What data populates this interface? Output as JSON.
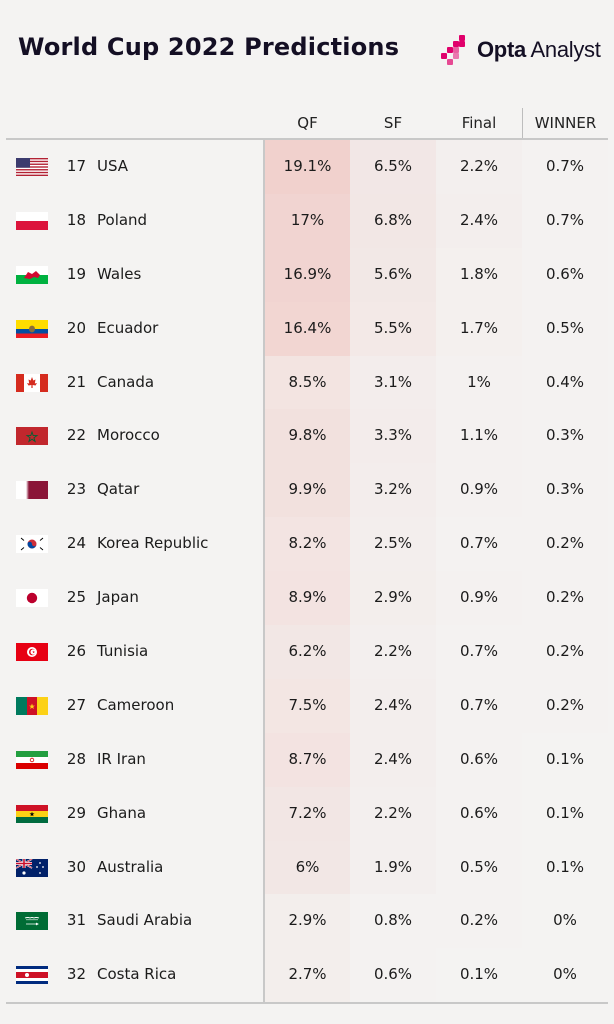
{
  "title": "World Cup 2022 Predictions",
  "brand": {
    "strong": "Opta",
    "light": " Analyst",
    "color": "#e0006b"
  },
  "columns": {
    "qf": "QF",
    "sf": "SF",
    "final": "Final",
    "winner": "WINNER"
  },
  "colors": {
    "heat": "#e8594a",
    "background": "#f4f3f2"
  },
  "chart_data": {
    "type": "table",
    "title": "World Cup 2022 Predictions",
    "columns": [
      "QF",
      "SF",
      "Final",
      "WINNER"
    ],
    "rows": [
      {
        "rank": "17",
        "team": "USA",
        "flag": "usa",
        "qf": "19.1%",
        "sf": "6.5%",
        "final": "2.2%",
        "winner": "0.7%"
      },
      {
        "rank": "18",
        "team": "Poland",
        "flag": "poland",
        "qf": "17%",
        "sf": "6.8%",
        "final": "2.4%",
        "winner": "0.7%"
      },
      {
        "rank": "19",
        "team": "Wales",
        "flag": "wales",
        "qf": "16.9%",
        "sf": "5.6%",
        "final": "1.8%",
        "winner": "0.6%"
      },
      {
        "rank": "20",
        "team": "Ecuador",
        "flag": "ecuador",
        "qf": "16.4%",
        "sf": "5.5%",
        "final": "1.7%",
        "winner": "0.5%"
      },
      {
        "rank": "21",
        "team": "Canada",
        "flag": "canada",
        "qf": "8.5%",
        "sf": "3.1%",
        "final": "1%",
        "winner": "0.4%"
      },
      {
        "rank": "22",
        "team": "Morocco",
        "flag": "morocco",
        "qf": "9.8%",
        "sf": "3.3%",
        "final": "1.1%",
        "winner": "0.3%"
      },
      {
        "rank": "23",
        "team": "Qatar",
        "flag": "qatar",
        "qf": "9.9%",
        "sf": "3.2%",
        "final": "0.9%",
        "winner": "0.3%"
      },
      {
        "rank": "24",
        "team": "Korea Republic",
        "flag": "korea",
        "qf": "8.2%",
        "sf": "2.5%",
        "final": "0.7%",
        "winner": "0.2%"
      },
      {
        "rank": "25",
        "team": "Japan",
        "flag": "japan",
        "qf": "8.9%",
        "sf": "2.9%",
        "final": "0.9%",
        "winner": "0.2%"
      },
      {
        "rank": "26",
        "team": "Tunisia",
        "flag": "tunisia",
        "qf": "6.2%",
        "sf": "2.2%",
        "final": "0.7%",
        "winner": "0.2%"
      },
      {
        "rank": "27",
        "team": "Cameroon",
        "flag": "cameroon",
        "qf": "7.5%",
        "sf": "2.4%",
        "final": "0.7%",
        "winner": "0.2%"
      },
      {
        "rank": "28",
        "team": "IR Iran",
        "flag": "iran",
        "qf": "8.7%",
        "sf": "2.4%",
        "final": "0.6%",
        "winner": "0.1%"
      },
      {
        "rank": "29",
        "team": "Ghana",
        "flag": "ghana",
        "qf": "7.2%",
        "sf": "2.2%",
        "final": "0.6%",
        "winner": "0.1%"
      },
      {
        "rank": "30",
        "team": "Australia",
        "flag": "australia",
        "qf": "6%",
        "sf": "1.9%",
        "final": "0.5%",
        "winner": "0.1%"
      },
      {
        "rank": "31",
        "team": "Saudi Arabia",
        "flag": "saudi-arabia",
        "qf": "2.9%",
        "sf": "0.8%",
        "final": "0.2%",
        "winner": "0%"
      },
      {
        "rank": "32",
        "team": "Costa Rica",
        "flag": "costa-rica",
        "qf": "2.7%",
        "sf": "0.6%",
        "final": "0.1%",
        "winner": "0%"
      }
    ]
  }
}
